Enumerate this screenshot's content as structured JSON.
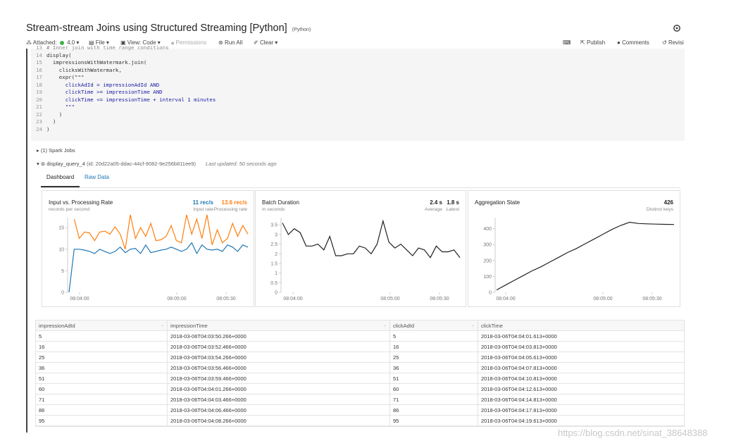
{
  "notebook": {
    "title": "Stream-stream Joins using Structured Streaming [Python]",
    "language_tag": "(Python)"
  },
  "toolbar": {
    "attached_label": "Attached:",
    "cluster": "4.0",
    "file": "File",
    "view": "View: Code",
    "permissions": "Permissions",
    "run_all": "Run All",
    "clear": "Clear",
    "publish": "Publish",
    "comments": "Comments",
    "revision": "Revisi"
  },
  "code": {
    "lines": [
      {
        "n": "13",
        "t": "# Inner join with time range conditions",
        "cls": "cm"
      },
      {
        "n": "14",
        "t": "display(",
        "cls": "kw"
      },
      {
        "n": "15",
        "t": "  impressionsWithWatermark.join(",
        "cls": "kw"
      },
      {
        "n": "16",
        "t": "    clicksWithWatermark,",
        "cls": "kw"
      },
      {
        "n": "17",
        "t": "    expr(\"\"\"",
        "cls": "kw"
      },
      {
        "n": "18",
        "t": "      clickAdId = impressionAdId AND",
        "cls": "str"
      },
      {
        "n": "19",
        "t": "      clickTime >= impressionTime AND",
        "cls": "str"
      },
      {
        "n": "20",
        "t": "      clickTime <= impressionTime + interval 1 minutes",
        "cls": "str"
      },
      {
        "n": "21",
        "t": "      \"\"\"",
        "cls": "str"
      },
      {
        "n": "22",
        "t": "    )",
        "cls": "kw"
      },
      {
        "n": "23",
        "t": "  )",
        "cls": "kw"
      },
      {
        "n": "24",
        "t": ")",
        "cls": "kw"
      }
    ]
  },
  "output": {
    "spark_jobs": "(1) Spark Jobs",
    "query_name": "display_query_4",
    "query_id": "(id: 20d22a05-ddac-44cf-9082-9e256b811ee9)",
    "last_updated": "Last updated: 50 seconds ago",
    "tabs": [
      "Dashboard",
      "Raw Data"
    ]
  },
  "panels": {
    "rate": {
      "title": "Input vs. Processing Rate",
      "subtitle": "records per second",
      "input_value": "11 rec/s",
      "input_label": "Input rate",
      "processing_value": "13.6 rec/s",
      "processing_label": "Processing rate"
    },
    "batch": {
      "title": "Batch Duration",
      "subtitle": "in seconds",
      "avg_value": "2.4 s",
      "avg_label": "Average",
      "latest_value": "1.8 s",
      "latest_label": "Latest"
    },
    "agg": {
      "title": "Aggregation State",
      "keys_value": "426",
      "keys_label": "Distinct keys"
    }
  },
  "colors": {
    "input": "#1f77b4",
    "processing": "#ff7f0e",
    "line": "#222222"
  },
  "chart_data": [
    {
      "type": "line",
      "title": "Input vs. Processing Rate",
      "ylabel": "records per second",
      "x_ticks": [
        "08:04:00",
        "08:05:00",
        "08:05:30"
      ],
      "y_ticks": [
        "0",
        "5",
        "10",
        "15"
      ],
      "ylim": [
        0,
        17
      ],
      "series": [
        {
          "name": "Input rate",
          "color": "#1f77b4",
          "values": [
            0,
            10,
            10,
            9.8,
            9.5,
            9,
            10,
            9.5,
            9,
            9.5,
            10.5,
            9.2,
            10,
            10.2,
            9,
            11,
            9.2,
            9.5,
            9.8,
            10,
            10.5,
            10,
            9.5,
            10,
            11.5,
            9,
            11,
            10,
            9.8,
            10,
            9.5,
            11,
            10.5,
            9.5,
            11,
            10.5
          ]
        },
        {
          "name": "Processing rate",
          "color": "#ff7f0e",
          "values": [
            null,
            17,
            12.5,
            14,
            13.8,
            12,
            14,
            14.2,
            13.5,
            15.2,
            13.5,
            10,
            18,
            12.5,
            15,
            13,
            16,
            12,
            12.2,
            13,
            15.5,
            12,
            11.5,
            18,
            13.5,
            17,
            12.5,
            18,
            11,
            14.5,
            11.5,
            12.5,
            16,
            13,
            15.5,
            13.5
          ]
        }
      ]
    },
    {
      "type": "line",
      "title": "Batch Duration",
      "ylabel": "in seconds",
      "x_ticks": [
        "08:04:00",
        "08:05:00",
        "08:05:30"
      ],
      "y_ticks": [
        "0",
        "0.5",
        "1",
        "1.5",
        "2",
        "2.5",
        "3",
        "3.5"
      ],
      "ylim": [
        0,
        3.8
      ],
      "series": [
        {
          "name": "Batch Duration",
          "color": "#222222",
          "values": [
            3.6,
            3.0,
            3.3,
            3.1,
            2.4,
            2.4,
            2.5,
            2.2,
            2.9,
            1.9,
            1.9,
            2.0,
            2.0,
            2.4,
            2.3,
            2.0,
            2.5,
            3.7,
            2.6,
            2.3,
            2.5,
            2.2,
            1.9,
            2.3,
            2.2,
            1.8,
            2.4,
            2.1,
            2.1,
            2.2,
            1.8
          ]
        }
      ]
    },
    {
      "type": "line",
      "title": "Aggregation State",
      "ylabel": "Distinct keys",
      "x_ticks": [
        "08:04:00",
        "08:05:00",
        "08:05:30"
      ],
      "y_ticks": [
        "0",
        "100",
        "200",
        "300",
        "400"
      ],
      "ylim": [
        0,
        460
      ],
      "series": [
        {
          "name": "Distinct keys",
          "color": "#222222",
          "values": [
            15,
            45,
            75,
            105,
            135,
            160,
            190,
            220,
            250,
            275,
            305,
            335,
            365,
            395,
            420,
            440,
            432,
            430,
            428,
            427,
            426
          ]
        }
      ]
    }
  ],
  "table": {
    "headers": [
      "impressionAdId",
      "impressionTime",
      "clickAdId",
      "clickTime"
    ],
    "rows": [
      [
        "5",
        "2018-03-06T04:03:50.266+0000",
        "5",
        "2018-03-06T04:04:01.613+0000"
      ],
      [
        "16",
        "2018-03-06T04:03:52.466+0000",
        "16",
        "2018-03-06T04:04:03.813+0000"
      ],
      [
        "25",
        "2018-03-06T04:03:54.266+0000",
        "25",
        "2018-03-06T04:04:05.613+0000"
      ],
      [
        "36",
        "2018-03-06T04:03:56.466+0000",
        "36",
        "2018-03-06T04:04:07.813+0000"
      ],
      [
        "51",
        "2018-03-06T04:03:59.466+0000",
        "51",
        "2018-03-06T04:04:10.813+0000"
      ],
      [
        "60",
        "2018-03-06T04:04:01.266+0000",
        "60",
        "2018-03-06T04:04:12.613+0000"
      ],
      [
        "71",
        "2018-03-06T04:04:03.466+0000",
        "71",
        "2018-03-06T04:04:14.813+0000"
      ],
      [
        "86",
        "2018-03-06T04:04:06.466+0000",
        "86",
        "2018-03-06T04:04:17.813+0000"
      ],
      [
        "95",
        "2018-03-06T04:04:08.266+0000",
        "95",
        "2018-03-06T04:04:19.613+0000"
      ]
    ]
  },
  "watermark": "https://blog.csdn.net/sinat_38648388"
}
